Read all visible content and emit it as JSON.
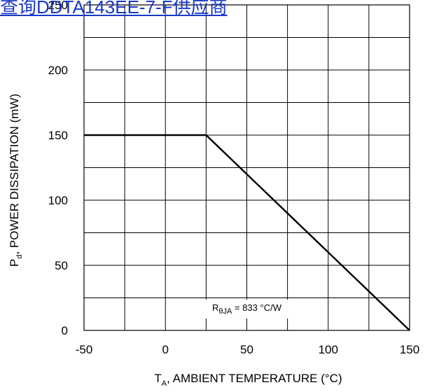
{
  "link": {
    "text": "查询DDTA143EE-7-F供应商"
  },
  "chart_data": {
    "type": "line",
    "series": [
      {
        "x": [
          -50,
          25,
          150
        ],
        "y": [
          150,
          150,
          0
        ]
      }
    ],
    "xlim": [
      -50,
      150
    ],
    "ylim": [
      0,
      250
    ],
    "x_ticks": [
      -50,
      0,
      50,
      100,
      150
    ],
    "y_ticks": [
      0,
      50,
      100,
      150,
      200,
      250
    ],
    "x_tick_labels": [
      "-50",
      "0",
      "50",
      "100",
      "150"
    ],
    "y_tick_labels": [
      "0",
      "50",
      "100",
      "150",
      "200",
      "250"
    ],
    "xlabel": {
      "main": "T",
      "sub": "A",
      "rest": ", AMBIENT TEMPERATURE (°C)"
    },
    "ylabel": {
      "main": "P",
      "sub": "d",
      "rest": ", POWER DISSIPATION (mW)"
    },
    "grid": true,
    "annotation": {
      "main": "R",
      "sub": "θJA",
      "rest": " = 833 °C/W",
      "x": 50,
      "y": 15
    }
  }
}
